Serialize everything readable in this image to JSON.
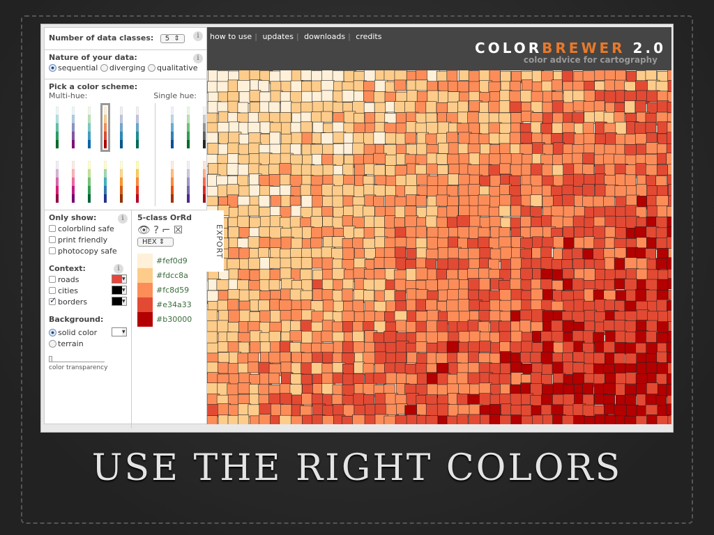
{
  "panel": {
    "classes_label": "Number of data classes:",
    "classes_value": "5",
    "nature_label": "Nature of your data:",
    "nature_options": [
      "sequential",
      "diverging",
      "qualitative"
    ],
    "pick_label": "Pick a color scheme:",
    "multi_label": "Multi-hue:",
    "single_label": "Single hue:",
    "multi_schemes": [
      [
        "#edf8fb",
        "#b2e2e2",
        "#66c2a4",
        "#2ca25f",
        "#006d2c"
      ],
      [
        "#edf8fb",
        "#b3cde3",
        "#8c96c6",
        "#8856a7",
        "#810f7c"
      ],
      [
        "#f0f9e8",
        "#bae4bc",
        "#7bccc4",
        "#43a2ca",
        "#0868ac"
      ],
      [
        "#fef0d9",
        "#fdcc8a",
        "#fc8d59",
        "#e34a33",
        "#b30000"
      ],
      [
        "#f1eef6",
        "#bdc9e1",
        "#74a9cf",
        "#2b8cbe",
        "#045a8d"
      ],
      [
        "#f6eff7",
        "#bdc9e1",
        "#67a9cf",
        "#1c9099",
        "#016c59"
      ],
      [
        "#f1eef6",
        "#d7b5d8",
        "#df65b0",
        "#dd1c77",
        "#980043"
      ],
      [
        "#feebe2",
        "#fbb4b9",
        "#f768a1",
        "#c51b8a",
        "#7a0177"
      ],
      [
        "#ffffcc",
        "#c2e699",
        "#78c679",
        "#31a354",
        "#006837"
      ],
      [
        "#ffffcc",
        "#a1dab4",
        "#41b6c4",
        "#2c7fb8",
        "#253494"
      ],
      [
        "#ffffd4",
        "#fed98e",
        "#fe9929",
        "#d95f0e",
        "#993404"
      ],
      [
        "#ffffb2",
        "#fecc5c",
        "#fd8d3c",
        "#f03b20",
        "#bd0026"
      ]
    ],
    "single_schemes": [
      [
        "#eff3ff",
        "#bdd7e7",
        "#6baed6",
        "#3182bd",
        "#08519c"
      ],
      [
        "#edf8e9",
        "#bae4b3",
        "#74c476",
        "#31a354",
        "#006d2c"
      ],
      [
        "#f7f7f7",
        "#cccccc",
        "#969696",
        "#636363",
        "#252525"
      ],
      [
        "#feedde",
        "#fdbe85",
        "#fd8d3c",
        "#e6550d",
        "#a63603"
      ],
      [
        "#f2f0f7",
        "#cbc9e2",
        "#9e9ac8",
        "#756bb1",
        "#54278f"
      ],
      [
        "#fee5d9",
        "#fcae91",
        "#fb6a4a",
        "#de2d26",
        "#a50f15"
      ]
    ],
    "only_show_label": "Only show:",
    "only_show": [
      "colorblind safe",
      "print friendly",
      "photocopy safe"
    ],
    "context_label": "Context:",
    "context": [
      {
        "label": "roads",
        "checked": false,
        "color": "#e8453c"
      },
      {
        "label": "cities",
        "checked": false,
        "color": "#000000"
      },
      {
        "label": "borders",
        "checked": true,
        "color": "#000000"
      }
    ],
    "background_label": "Background:",
    "background_options": [
      "solid color",
      "terrain"
    ],
    "transparency_label": "color transparency",
    "scheme_title": "5-class OrRd",
    "format": "HEX",
    "export_label": "EXPORT",
    "legend": [
      "#fef0d9",
      "#fdcc8a",
      "#fc8d59",
      "#e34a33",
      "#b30000"
    ]
  },
  "header": {
    "nav": [
      "how to use",
      "updates",
      "downloads",
      "credits"
    ],
    "logo_a": "COLOR",
    "logo_b": "BREWER",
    "logo_c": " 2.0",
    "tagline": "color advice for cartography"
  },
  "slide_title": "USE THE RIGHT COLORS"
}
